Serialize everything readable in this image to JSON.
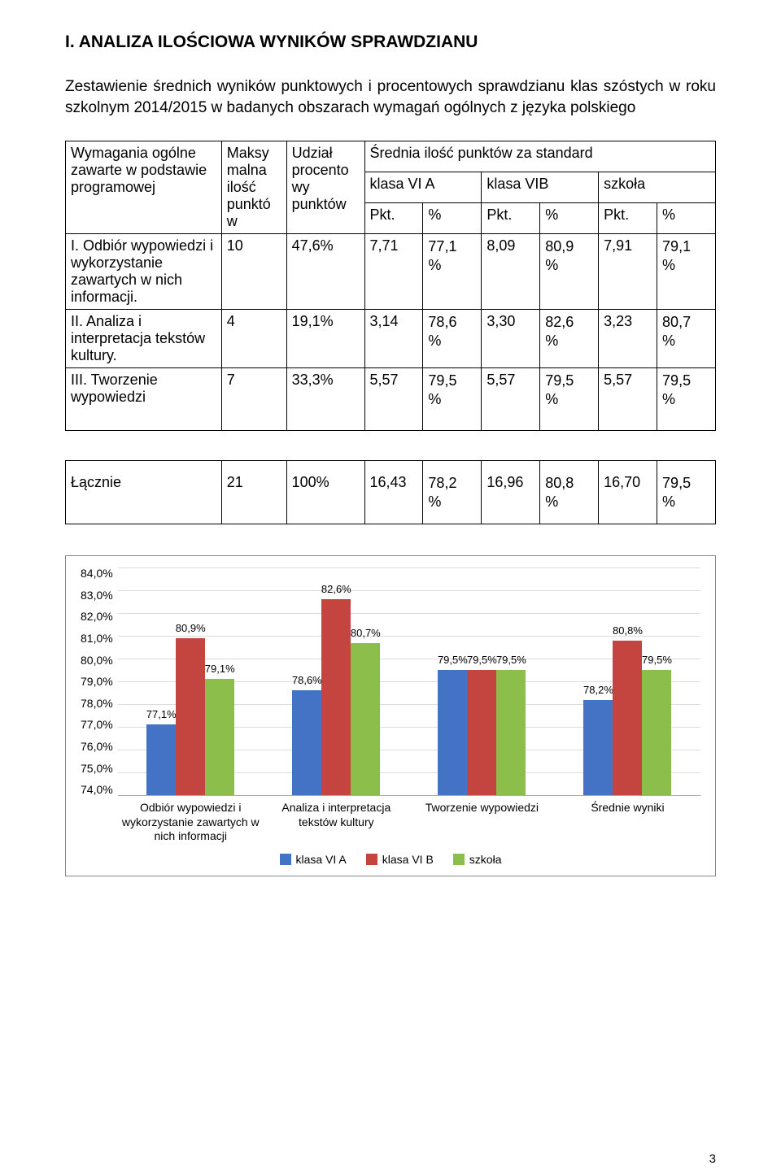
{
  "heading": "I. ANALIZA ILOŚCIOWA WYNIKÓW SPRAWDZIANU",
  "intro": "Zestawienie średnich wyników punktowych i procentowych sprawdzianu klas szóstych w roku szkolnym 2014/2015 w badanych obszarach wymagań ogólnych z języka polskiego",
  "table": {
    "head": {
      "requirements": "Wymagania ogólne zawarte w podstawie programowej",
      "max": "Maksy\nmalna\nilość\npunktó\nw",
      "share": "Udział\nprocento\nwy\npunktów",
      "avg_title": "Średnia ilość punktów za standard",
      "classA": "klasa VI A",
      "classB": "klasa VIB",
      "school": "szkoła",
      "pkt": "Pkt.",
      "pct": "%"
    },
    "rows": [
      {
        "label": "I. Odbiór wypowiedzi i wykorzystanie zawartych w nich informacji.",
        "max": "10",
        "share": "47,6%",
        "a_pkt": "7,71",
        "a_pct": "77,1\n%",
        "b_pkt": "8,09",
        "b_pct": "80,9\n%",
        "s_pkt": "7,91",
        "s_pct": "79,1\n%"
      },
      {
        "label": "II. Analiza i interpretacja tekstów kultury.",
        "max": "4",
        "share": "19,1%",
        "a_pkt": "3,14",
        "a_pct": "78,6\n%",
        "b_pkt": "3,30",
        "b_pct": "82,6\n%",
        "s_pkt": "3,23",
        "s_pct": "80,7\n%"
      },
      {
        "label": "III. Tworzenie wypowiedzi",
        "max": "7",
        "share": "33,3%",
        "a_pkt": "5,57",
        "a_pct": "79,5\n%",
        "b_pkt": "5,57",
        "b_pct": "79,5\n%",
        "s_pkt": "5,57",
        "s_pct": "79,5\n%"
      }
    ],
    "total": {
      "label": "Łącznie",
      "max": "21",
      "share": "100%",
      "a_pkt": "16,43",
      "a_pct": "78,2\n%",
      "b_pkt": "16,96",
      "b_pct": "80,8\n%",
      "s_pkt": "16,70",
      "s_pct": "79,5\n%"
    }
  },
  "chart": {
    "type": "bar",
    "ymin": 74.0,
    "ymax": 84.0,
    "ystep": 1.0,
    "y_ticks": [
      "84,0%",
      "83,0%",
      "82,0%",
      "81,0%",
      "80,0%",
      "79,0%",
      "78,0%",
      "77,0%",
      "76,0%",
      "75,0%",
      "74,0%"
    ],
    "series_colors": {
      "classA": "#4473c5",
      "classB": "#c44440",
      "school": "#8bbe4a"
    },
    "groups": [
      {
        "x_label": "Odbiór wypowiedzi i wykorzystanie zawartych w nich informacji",
        "bars": [
          {
            "series": "classA",
            "value": 77.1,
            "label": "77,1%"
          },
          {
            "series": "classB",
            "value": 80.9,
            "label": "80,9%"
          },
          {
            "series": "school",
            "value": 79.1,
            "label": "79,1%"
          }
        ]
      },
      {
        "x_label": "Analiza i interpretacja tekstów kultury",
        "bars": [
          {
            "series": "classA",
            "value": 78.6,
            "label": "78,6%"
          },
          {
            "series": "classB",
            "value": 82.6,
            "label": "82,6%"
          },
          {
            "series": "school",
            "value": 80.7,
            "label": "80,7%"
          }
        ]
      },
      {
        "x_label": "Tworzenie wypowiedzi",
        "bars": [
          {
            "series": "classA",
            "value": 79.5,
            "label": "79,5%"
          },
          {
            "series": "classB",
            "value": 79.5,
            "label": "79,5%"
          },
          {
            "series": "school",
            "value": 79.5,
            "label": "79,5%"
          }
        ]
      },
      {
        "x_label": "Średnie wyniki",
        "bars": [
          {
            "series": "classA",
            "value": 78.2,
            "label": "78,2%"
          },
          {
            "series": "classB",
            "value": 80.8,
            "label": "80,8%"
          },
          {
            "series": "school",
            "value": 79.5,
            "label": "79,5%"
          }
        ]
      }
    ],
    "legend": [
      {
        "series": "classA",
        "label": "klasa VI A"
      },
      {
        "series": "classB",
        "label": "klasa VI B"
      },
      {
        "series": "school",
        "label": "szkoła"
      }
    ]
  },
  "page_number": "3"
}
